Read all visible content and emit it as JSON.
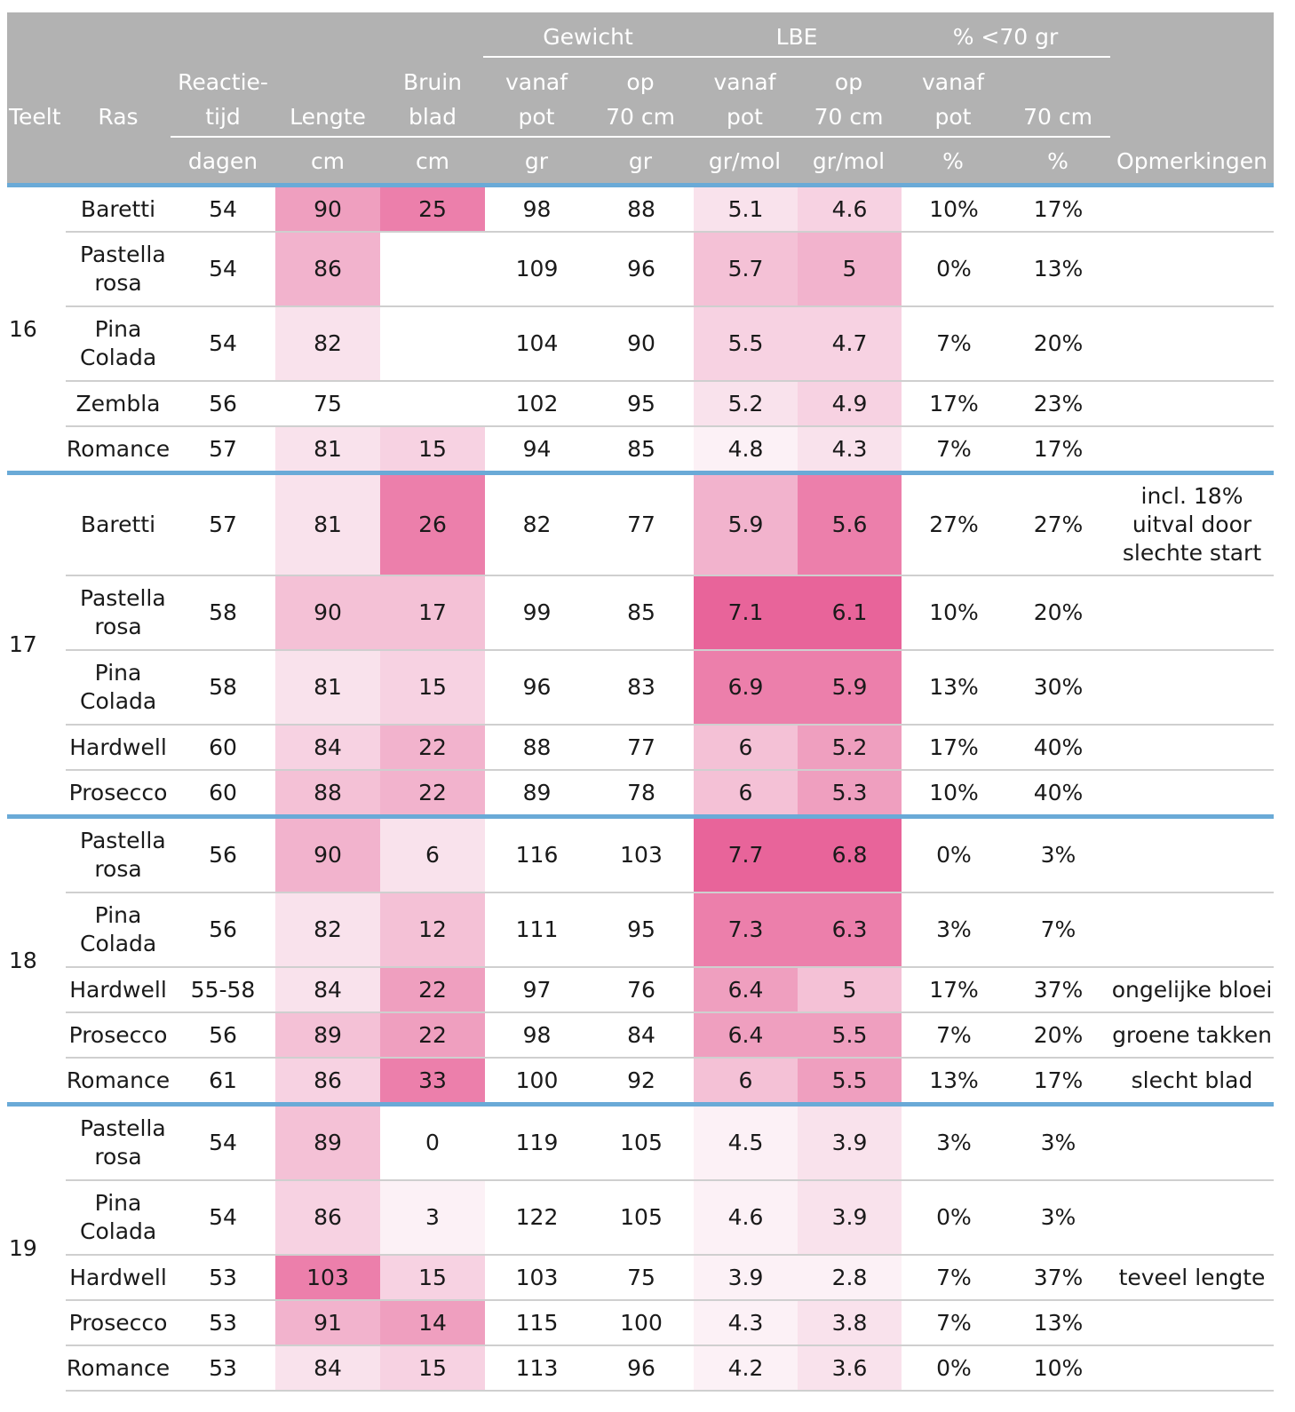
{
  "header": {
    "teelt": "Teelt",
    "ras": "Ras",
    "reactie_1": "Reactie-",
    "reactie_2": "tijd",
    "lengte": "Lengte",
    "bruin_1": "Bruin",
    "bruin_2": "blad",
    "gewicht": "Gewicht",
    "lbe": "LBE",
    "pct70": "% <70 gr",
    "vanaf": "vanaf",
    "pot": "pot",
    "op": "op",
    "cm70": "70 cm",
    "opmerkingen": "Opmerkingen",
    "units": [
      "dagen",
      "cm",
      "cm",
      "gr",
      "gr",
      "gr/mol",
      "gr/mol",
      "%",
      "%"
    ]
  },
  "colors": {
    "header_bg": "#b2b2b2",
    "group_separator": "#6aaad7",
    "heat_scale": [
      "#ffffff",
      "#fcf1f6",
      "#f9e2ec",
      "#f7d2e2",
      "#f4c1d6",
      "#f2b3cd",
      "#ef9fbf",
      "#ec7fab",
      "#e8649a"
    ]
  },
  "groups": [
    {
      "teelt": "16",
      "rows": [
        {
          "ras": "Baretti",
          "reactie": "54",
          "lengte": "90",
          "bruin": "25",
          "gew_pot": "98",
          "gew_70": "88",
          "lbe_pot": "5.1",
          "lbe_70": "4.6",
          "pct_pot": "10%",
          "pct_70": "17%",
          "opm": "",
          "h": 1,
          "heat": [
            6,
            7,
            0,
            0,
            2,
            3
          ]
        },
        {
          "ras": "Pastella rosa",
          "reactie": "54",
          "lengte": "86",
          "bruin": "",
          "gew_pot": "109",
          "gew_70": "96",
          "lbe_pot": "5.7",
          "lbe_70": "5",
          "pct_pot": "0%",
          "pct_70": "13%",
          "opm": "",
          "h": 2,
          "heat": [
            5,
            0,
            0,
            0,
            4,
            5
          ]
        },
        {
          "ras": "Pina Colada",
          "reactie": "54",
          "lengte": "82",
          "bruin": "",
          "gew_pot": "104",
          "gew_70": "90",
          "lbe_pot": "5.5",
          "lbe_70": "4.7",
          "pct_pot": "7%",
          "pct_70": "20%",
          "opm": "",
          "h": 2,
          "heat": [
            2,
            0,
            0,
            0,
            3,
            3
          ]
        },
        {
          "ras": "Zembla",
          "reactie": "56",
          "lengte": "75",
          "bruin": "",
          "gew_pot": "102",
          "gew_70": "95",
          "lbe_pot": "5.2",
          "lbe_70": "4.9",
          "pct_pot": "17%",
          "pct_70": "23%",
          "opm": "",
          "h": 1,
          "heat": [
            0,
            0,
            0,
            0,
            2,
            3
          ]
        },
        {
          "ras": "Romance",
          "reactie": "57",
          "lengte": "81",
          "bruin": "15",
          "gew_pot": "94",
          "gew_70": "85",
          "lbe_pot": "4.8",
          "lbe_70": "4.3",
          "pct_pot": "7%",
          "pct_70": "17%",
          "opm": "",
          "h": 1,
          "heat": [
            2,
            3,
            0,
            0,
            1,
            2
          ]
        }
      ]
    },
    {
      "teelt": "17",
      "rows": [
        {
          "ras": "Baretti",
          "reactie": "57",
          "lengte": "81",
          "bruin": "26",
          "gew_pot": "82",
          "gew_70": "77",
          "lbe_pot": "5.9",
          "lbe_70": "5.6",
          "pct_pot": "27%",
          "pct_70": "27%",
          "opm": "incl. 18% uitval door slechte start",
          "h": 3,
          "heat": [
            2,
            7,
            0,
            0,
            5,
            7
          ]
        },
        {
          "ras": "Pastella rosa",
          "reactie": "58",
          "lengte": "90",
          "bruin": "17",
          "gew_pot": "99",
          "gew_70": "85",
          "lbe_pot": "7.1",
          "lbe_70": "6.1",
          "pct_pot": "10%",
          "pct_70": "20%",
          "opm": "",
          "h": 2,
          "heat": [
            4,
            4,
            0,
            0,
            8,
            8
          ]
        },
        {
          "ras": "Pina Colada",
          "reactie": "58",
          "lengte": "81",
          "bruin": "15",
          "gew_pot": "96",
          "gew_70": "83",
          "lbe_pot": "6.9",
          "lbe_70": "5.9",
          "pct_pot": "13%",
          "pct_70": "30%",
          "opm": "",
          "h": 2,
          "heat": [
            2,
            3,
            0,
            0,
            7,
            7
          ]
        },
        {
          "ras": "Hardwell",
          "reactie": "60",
          "lengte": "84",
          "bruin": "22",
          "gew_pot": "88",
          "gew_70": "77",
          "lbe_pot": "6",
          "lbe_70": "5.2",
          "pct_pot": "17%",
          "pct_70": "40%",
          "opm": "",
          "h": 1,
          "heat": [
            3,
            5,
            0,
            0,
            4,
            6
          ]
        },
        {
          "ras": "Prosecco",
          "reactie": "60",
          "lengte": "88",
          "bruin": "22",
          "gew_pot": "89",
          "gew_70": "78",
          "lbe_pot": "6",
          "lbe_70": "5.3",
          "pct_pot": "10%",
          "pct_70": "40%",
          "opm": "",
          "h": 1,
          "heat": [
            4,
            5,
            0,
            0,
            4,
            6
          ]
        }
      ]
    },
    {
      "teelt": "18",
      "rows": [
        {
          "ras": "Pastella rosa",
          "reactie": "56",
          "lengte": "90",
          "bruin": "6",
          "gew_pot": "116",
          "gew_70": "103",
          "lbe_pot": "7.7",
          "lbe_70": "6.8",
          "pct_pot": "0%",
          "pct_70": "3%",
          "opm": "",
          "h": 2,
          "heat": [
            5,
            2,
            0,
            0,
            8,
            8
          ]
        },
        {
          "ras": "Pina Colada",
          "reactie": "56",
          "lengte": "82",
          "bruin": "12",
          "gew_pot": "111",
          "gew_70": "95",
          "lbe_pot": "7.3",
          "lbe_70": "6.3",
          "pct_pot": "3%",
          "pct_70": "7%",
          "opm": "",
          "h": 2,
          "heat": [
            2,
            4,
            0,
            0,
            7,
            7
          ]
        },
        {
          "ras": "Hardwell",
          "reactie": "55-58",
          "lengte": "84",
          "bruin": "22",
          "gew_pot": "97",
          "gew_70": "76",
          "lbe_pot": "6.4",
          "lbe_70": "5",
          "pct_pot": "17%",
          "pct_70": "37%",
          "opm": "ongelijke bloei",
          "h": 1,
          "heat": [
            2,
            6,
            0,
            0,
            6,
            4
          ]
        },
        {
          "ras": "Prosecco",
          "reactie": "56",
          "lengte": "89",
          "bruin": "22",
          "gew_pot": "98",
          "gew_70": "84",
          "lbe_pot": "6.4",
          "lbe_70": "5.5",
          "pct_pot": "7%",
          "pct_70": "20%",
          "opm": "groene takken",
          "h": 1,
          "heat": [
            4,
            6,
            0,
            0,
            6,
            6
          ]
        },
        {
          "ras": "Romance",
          "reactie": "61",
          "lengte": "86",
          "bruin": "33",
          "gew_pot": "100",
          "gew_70": "92",
          "lbe_pot": "6",
          "lbe_70": "5.5",
          "pct_pot": "13%",
          "pct_70": "17%",
          "opm": "slecht blad",
          "h": 1,
          "heat": [
            3,
            7,
            0,
            0,
            4,
            6
          ]
        }
      ]
    },
    {
      "teelt": "19",
      "rows": [
        {
          "ras": "Pastella rosa",
          "reactie": "54",
          "lengte": "89",
          "bruin": "0",
          "gew_pot": "119",
          "gew_70": "105",
          "lbe_pot": "4.5",
          "lbe_70": "3.9",
          "pct_pot": "3%",
          "pct_70": "3%",
          "opm": "",
          "h": 2,
          "heat": [
            4,
            0,
            0,
            0,
            1,
            2
          ]
        },
        {
          "ras": "Pina Colada",
          "reactie": "54",
          "lengte": "86",
          "bruin": "3",
          "gew_pot": "122",
          "gew_70": "105",
          "lbe_pot": "4.6",
          "lbe_70": "3.9",
          "pct_pot": "0%",
          "pct_70": "3%",
          "opm": "",
          "h": 2,
          "heat": [
            3,
            1,
            0,
            0,
            1,
            2
          ]
        },
        {
          "ras": "Hardwell",
          "reactie": "53",
          "lengte": "103",
          "bruin": "15",
          "gew_pot": "103",
          "gew_70": "75",
          "lbe_pot": "3.9",
          "lbe_70": "2.8",
          "pct_pot": "7%",
          "pct_70": "37%",
          "opm": "teveel lengte",
          "h": 1,
          "heat": [
            7,
            3,
            0,
            0,
            1,
            1
          ]
        },
        {
          "ras": "Prosecco",
          "reactie": "53",
          "lengte": "91",
          "bruin": "14",
          "gew_pot": "115",
          "gew_70": "100",
          "lbe_pot": "4.3",
          "lbe_70": "3.8",
          "pct_pot": "7%",
          "pct_70": "13%",
          "opm": "",
          "h": 1,
          "heat": [
            5,
            6,
            0,
            0,
            1,
            2
          ]
        },
        {
          "ras": "Romance",
          "reactie": "53",
          "lengte": "84",
          "bruin": "15",
          "gew_pot": "113",
          "gew_70": "96",
          "lbe_pot": "4.2",
          "lbe_70": "3.6",
          "pct_pot": "0%",
          "pct_70": "10%",
          "opm": "",
          "h": 1,
          "heat": [
            2,
            3,
            0,
            0,
            1,
            2
          ]
        }
      ]
    }
  ]
}
